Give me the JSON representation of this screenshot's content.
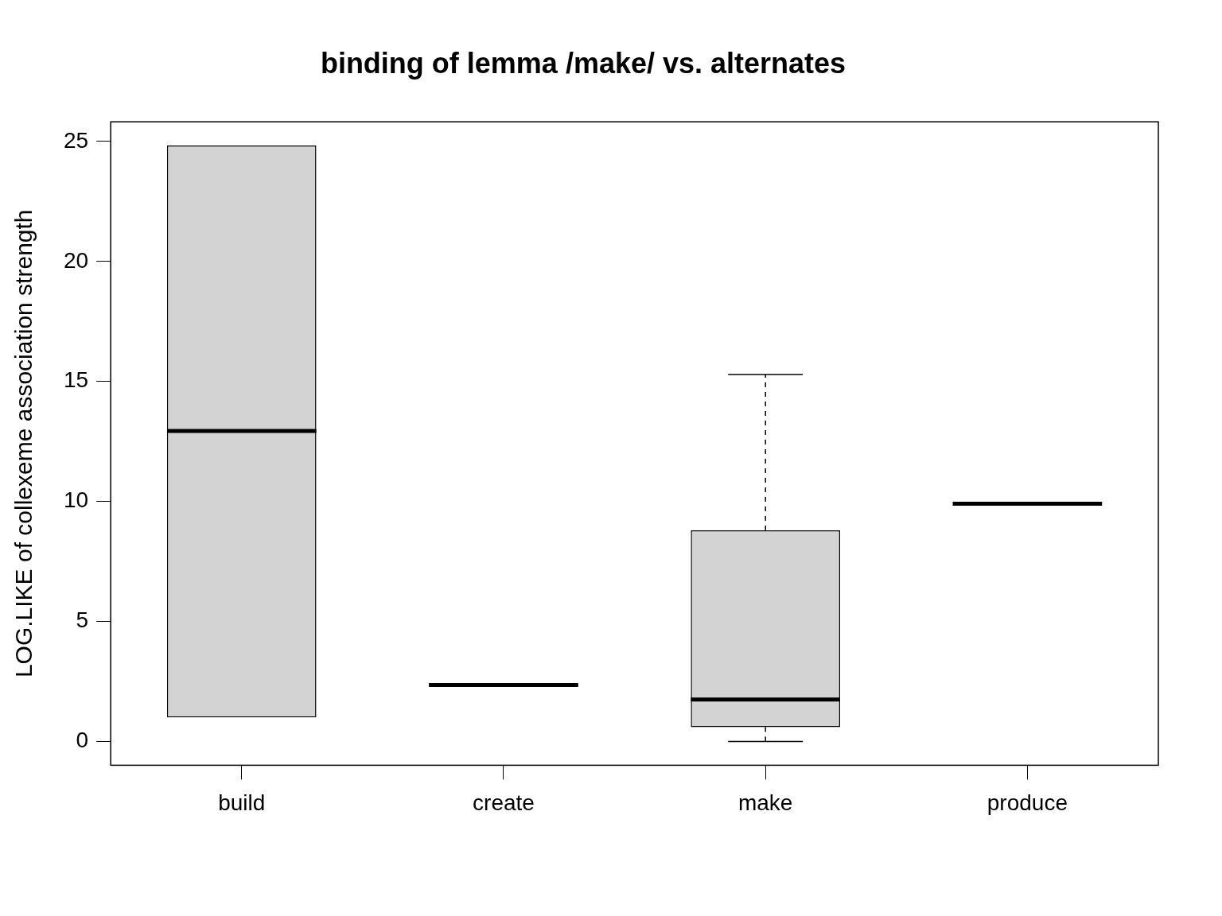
{
  "chart_data": {
    "type": "boxplot",
    "title": "binding of lemma /make/ vs. alternates",
    "y_label": "LOG.LIKE of collexeme association strength",
    "categories": [
      "build",
      "create",
      "make",
      "produce"
    ],
    "stats": [
      {
        "min": 1.0,
        "q1": 1.0,
        "median": 12.94,
        "q3": 24.83,
        "max": 24.83
      },
      {
        "min": 2.35,
        "q1": 2.35,
        "median": 2.35,
        "q3": 2.35,
        "max": 2.35
      },
      {
        "min": 0,
        "q1": 0.6,
        "median": 1.75,
        "q3": 8.8,
        "max": 15.29
      },
      {
        "min": 9.91,
        "q1": 9.91,
        "median": 9.91,
        "q3": 9.91,
        "max": 9.91
      }
    ],
    "color": "#d3d3d3",
    "ylim": [
      -0.99,
      25.82
    ],
    "yticks": [
      0,
      5,
      10,
      15,
      20,
      25
    ],
    "grid": false
  }
}
